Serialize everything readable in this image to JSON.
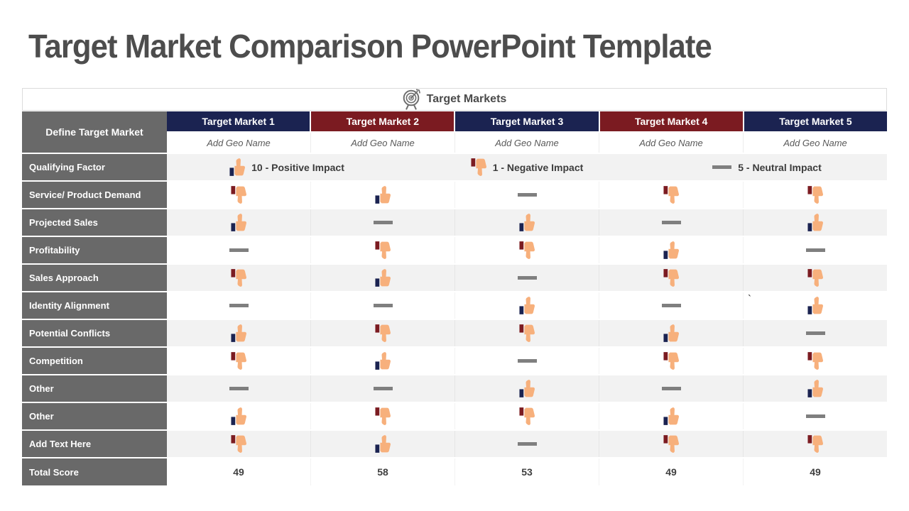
{
  "title": "Target Market Comparison PowerPoint Template",
  "table": {
    "caption": "Target Markets",
    "define_label": "Define Target Market",
    "columns": [
      {
        "label": "Target Market 1",
        "color": "#1b2351",
        "geo": "Add Geo Name"
      },
      {
        "label": "Target Market 2",
        "color": "#7b1b21",
        "geo": "Add Geo Name"
      },
      {
        "label": "Target Market 3",
        "color": "#1b2351",
        "geo": "Add Geo Name"
      },
      {
        "label": "Target Market 4",
        "color": "#7b1b21",
        "geo": "Add Geo Name"
      },
      {
        "label": "Target Market 5",
        "color": "#1b2351",
        "geo": "Add Geo Name"
      }
    ],
    "legend_row_label": "Qualifying Factor",
    "legend": [
      {
        "icon": "thumb-up-icon",
        "text": "10 - Positive Impact"
      },
      {
        "icon": "thumb-down-icon",
        "text": "1 - Negative Impact"
      },
      {
        "icon": "neutral-dash-icon",
        "text": "5 - Neutral Impact"
      }
    ],
    "rows": [
      {
        "label": "Service/ Product Demand",
        "cells": [
          "down",
          "up",
          "neutral",
          "down",
          "down"
        ]
      },
      {
        "label": "Projected Sales",
        "cells": [
          "up",
          "neutral",
          "up",
          "neutral",
          "up"
        ]
      },
      {
        "label": "Profitability",
        "cells": [
          "neutral",
          "down",
          "down",
          "up",
          "neutral"
        ]
      },
      {
        "label": "Sales Approach",
        "cells": [
          "down",
          "up",
          "neutral",
          "down",
          "down"
        ]
      },
      {
        "label": "Identity Alignment",
        "cells": [
          "neutral",
          "neutral",
          "up",
          "neutral",
          "up"
        ]
      },
      {
        "label": "Potential Conflicts",
        "cells": [
          "up",
          "down",
          "down",
          "up",
          "neutral"
        ]
      },
      {
        "label": "Competition",
        "cells": [
          "down",
          "up",
          "neutral",
          "down",
          "down"
        ]
      },
      {
        "label": "Other",
        "cells": [
          "neutral",
          "neutral",
          "up",
          "neutral",
          "up"
        ]
      },
      {
        "label": "Other",
        "cells": [
          "up",
          "down",
          "down",
          "up",
          "neutral"
        ]
      },
      {
        "label": "Add Text Here",
        "cells": [
          "down",
          "up",
          "neutral",
          "down",
          "down"
        ]
      }
    ],
    "total_row": {
      "label": "Total Score",
      "values": [
        "49",
        "58",
        "53",
        "49",
        "49"
      ]
    },
    "stray_mark": "`"
  },
  "colors": {
    "navy": "#1b2351",
    "maroon": "#7b1b21",
    "label_gray": "#696969",
    "row_alt": "#f2f2f2",
    "thumb_skin": "#f7b07c",
    "neutral_dash": "#7f7f7f",
    "title_gray": "#4d4d4d",
    "icon_gray": "#6e6e6e"
  }
}
